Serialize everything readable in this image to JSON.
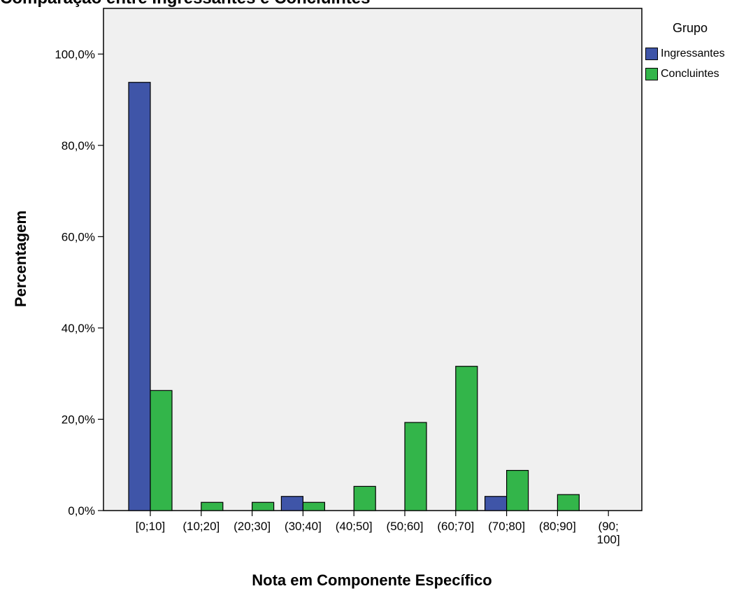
{
  "chart_data": {
    "type": "bar",
    "title_partial": "Comparação entre Ingressantes e Concluintes",
    "xlabel": "Nota em Componente Específico",
    "ylabel": "Percentagem",
    "categories": [
      "[0;10]",
      "(10;20]",
      "(20;30]",
      "(30;40]",
      "(40;50]",
      "(50;60]",
      "(60;70]",
      "(70;80]",
      "(80;90]",
      "(90;\n100]"
    ],
    "series": [
      {
        "name": "Ingressantes",
        "color": "#3f55a8",
        "values": [
          93.8,
          0,
          0,
          3.1,
          0,
          0,
          0,
          3.1,
          0,
          0
        ]
      },
      {
        "name": "Concluintes",
        "color": "#33b54a",
        "values": [
          26.3,
          1.8,
          1.8,
          1.8,
          5.3,
          19.3,
          31.6,
          8.8,
          3.5,
          0
        ]
      }
    ],
    "ylim": [
      0,
      110
    ],
    "yticks": [
      0,
      20,
      40,
      60,
      80,
      100
    ],
    "ytick_labels": [
      "0,0%",
      "20,0%",
      "40,0%",
      "60,0%",
      "80,0%",
      "100,0%"
    ],
    "legend": {
      "title": "Grupo",
      "placement": "right"
    },
    "plot_background": "#f0f0f0",
    "grid": false
  }
}
